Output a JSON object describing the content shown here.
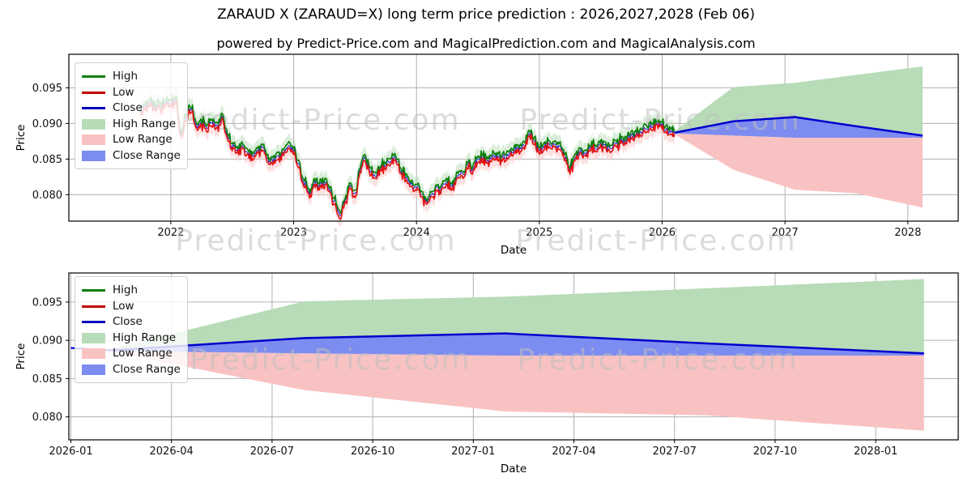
{
  "figure": {
    "title": "ZARAUD X (ZARAUD=X) long term price prediction : 2026,2027,2028 (Feb 06)",
    "subtitle": "powered by Predict-Price.com and MagicalPrediction.com and MagicalAnalysis.com",
    "watermark": "Predict-Price.com",
    "background": "#ffffff",
    "grid_color": "#b0b0b0",
    "text_color": "#111111"
  },
  "legend": {
    "items": [
      {
        "label": "High",
        "type": "line",
        "color": "#0a800a"
      },
      {
        "label": "Low",
        "type": "line",
        "color": "#c00000"
      },
      {
        "label": "Close",
        "type": "line",
        "color": "#0000bf"
      },
      {
        "label": "High Range",
        "type": "patch",
        "color": "#b7dcb7"
      },
      {
        "label": "Low Range",
        "type": "patch",
        "color": "#f9c2c2"
      },
      {
        "label": "Close Range",
        "type": "patch",
        "color": "#7d8cf0"
      }
    ]
  },
  "colors": {
    "high_line": "#0a800a",
    "low_line": "#e01212",
    "close_line": "#0000cd",
    "high_range_fill": "#b7dcb7",
    "low_range_fill": "#f9c2c2",
    "close_range_fill": "#7d8cf0",
    "watermark": "#bfbfbf"
  },
  "chart_data": [
    {
      "type": "line",
      "name": "long-term-history-and-forecast",
      "xlabel": "Date",
      "ylabel": "Price",
      "grid": true,
      "legend_position": "upper left",
      "xlim": [
        2021.17,
        2028.41
      ],
      "ylim": [
        0.0763,
        0.0997
      ],
      "x_tick_labels": [
        "2022",
        "2023",
        "2024",
        "2025",
        "2026",
        "2027",
        "2028"
      ],
      "x_tick_values": [
        2022,
        2023,
        2024,
        2025,
        2026,
        2027,
        2028
      ],
      "y_tick_labels": [
        "0.080",
        "0.085",
        "0.090",
        "0.095"
      ],
      "y_tick_values": [
        0.08,
        0.085,
        0.09,
        0.095
      ],
      "series_names": [
        "High",
        "Low",
        "Close",
        "High Range",
        "Low Range",
        "Close Range"
      ],
      "historical": {
        "description": "Daily High/Low/Close approximated by sub-monthly Close anchors; High and Low hug Close within ~0.0002-0.0006; pale green/pink range bands halo the lines by ~0.0011",
        "high_offset": 0.0002,
        "low_offset": 0.0002,
        "offset_jitter": 0.0004,
        "halo": 0.0011,
        "noise_amplitude": 0.0007,
        "x": [
          2021.75,
          2021.79,
          2021.83,
          2021.88,
          2021.92,
          2021.96,
          2022.0,
          2022.04,
          2022.08,
          2022.13,
          2022.17,
          2022.21,
          2022.25,
          2022.29,
          2022.33,
          2022.38,
          2022.42,
          2022.46,
          2022.5,
          2022.54,
          2022.58,
          2022.63,
          2022.67,
          2022.71,
          2022.75,
          2022.79,
          2022.83,
          2022.88,
          2022.92,
          2022.96,
          2023.0,
          2023.04,
          2023.08,
          2023.13,
          2023.17,
          2023.21,
          2023.25,
          2023.29,
          2023.33,
          2023.38,
          2023.42,
          2023.46,
          2023.5,
          2023.54,
          2023.58,
          2023.63,
          2023.67,
          2023.71,
          2023.75,
          2023.79,
          2023.83,
          2023.88,
          2023.92,
          2023.96,
          2024.0,
          2024.04,
          2024.08,
          2024.13,
          2024.17,
          2024.21,
          2024.25,
          2024.29,
          2024.33,
          2024.38,
          2024.42,
          2024.46,
          2024.5,
          2024.54,
          2024.58,
          2024.63,
          2024.67,
          2024.71,
          2024.75,
          2024.79,
          2024.83,
          2024.88,
          2024.92,
          2024.96,
          2025.0,
          2025.04,
          2025.08,
          2025.13,
          2025.17,
          2025.21,
          2025.25,
          2025.29,
          2025.33,
          2025.38,
          2025.42,
          2025.46,
          2025.5,
          2025.54,
          2025.58,
          2025.63,
          2025.67,
          2025.71,
          2025.75,
          2025.79,
          2025.83,
          2025.88,
          2025.92,
          2025.96,
          2026.0,
          2026.04,
          2026.08,
          2026.1
        ],
        "close": [
          0.092,
          0.0926,
          0.0928,
          0.0921,
          0.0924,
          0.0929,
          0.093,
          0.0934,
          0.0887,
          0.091,
          0.0921,
          0.0897,
          0.09,
          0.0895,
          0.0903,
          0.0897,
          0.091,
          0.0884,
          0.0868,
          0.0862,
          0.0868,
          0.0858,
          0.0853,
          0.0863,
          0.0865,
          0.085,
          0.0848,
          0.0855,
          0.086,
          0.0868,
          0.0862,
          0.0843,
          0.0818,
          0.0802,
          0.0818,
          0.0812,
          0.0815,
          0.0808,
          0.079,
          0.0772,
          0.0792,
          0.0813,
          0.08,
          0.0835,
          0.0852,
          0.0832,
          0.0825,
          0.0838,
          0.084,
          0.0846,
          0.0852,
          0.0832,
          0.0823,
          0.0815,
          0.081,
          0.08,
          0.0792,
          0.08,
          0.0812,
          0.081,
          0.0818,
          0.0812,
          0.0825,
          0.083,
          0.0842,
          0.0835,
          0.085,
          0.0852,
          0.0848,
          0.0855,
          0.0852,
          0.0856,
          0.0855,
          0.086,
          0.0866,
          0.087,
          0.0885,
          0.0875,
          0.0862,
          0.0868,
          0.0872,
          0.087,
          0.0868,
          0.0852,
          0.0835,
          0.0852,
          0.0862,
          0.0858,
          0.0868,
          0.0865,
          0.0872,
          0.087,
          0.0865,
          0.0872,
          0.0878,
          0.0875,
          0.0882,
          0.0885,
          0.0888,
          0.0892,
          0.0896,
          0.09,
          0.0898,
          0.0892,
          0.0888,
          0.0887
        ]
      },
      "forecast": {
        "description": "Prediction fan Feb-06-2026 to Feb-2028",
        "x": [
          2026.1,
          2026.58,
          2027.08,
          2027.58,
          2028.12
        ],
        "close": [
          0.0887,
          0.0903,
          0.0909,
          0.0896,
          0.0883
        ],
        "close_low": [
          0.0886,
          0.0883,
          0.088,
          0.088,
          0.088
        ],
        "high_top": [
          0.0889,
          0.0951,
          0.0957,
          0.0968,
          0.098
        ],
        "low_bottom": [
          0.0885,
          0.0835,
          0.0807,
          0.0802,
          0.0782
        ]
      }
    },
    {
      "type": "area",
      "name": "forecast-detail-2026-2028",
      "xlabel": "Date",
      "ylabel": "Price",
      "grid": true,
      "legend_position": "upper left",
      "xlim": [
        2025.995,
        2028.205
      ],
      "ylim": [
        0.077,
        0.0988
      ],
      "x_tick_labels": [
        "2026-01",
        "2026-04",
        "2026-07",
        "2026-10",
        "2027-01",
        "2027-04",
        "2027-07",
        "2027-10",
        "2028-01"
      ],
      "x_tick_values": [
        2026.0,
        2026.25,
        2026.5,
        2026.75,
        2027.0,
        2027.25,
        2027.5,
        2027.75,
        2028.0
      ],
      "y_tick_labels": [
        "0.080",
        "0.085",
        "0.090",
        "0.095"
      ],
      "y_tick_values": [
        0.08,
        0.085,
        0.09,
        0.095
      ],
      "series_names": [
        "High",
        "Low",
        "Close",
        "High Range",
        "Low Range",
        "Close Range"
      ],
      "pre_close": {
        "x": [
          2026.0,
          2026.1
        ],
        "y": [
          0.089,
          0.0887
        ]
      },
      "forecast": {
        "x": [
          2026.1,
          2026.58,
          2027.08,
          2027.58,
          2028.12
        ],
        "close": [
          0.0887,
          0.0903,
          0.0909,
          0.0896,
          0.0883
        ],
        "close_low": [
          0.0886,
          0.0883,
          0.088,
          0.088,
          0.088
        ],
        "high_top": [
          0.0889,
          0.0951,
          0.0957,
          0.0968,
          0.098
        ],
        "low_bottom": [
          0.0885,
          0.0835,
          0.0807,
          0.0802,
          0.0782
        ]
      }
    }
  ]
}
